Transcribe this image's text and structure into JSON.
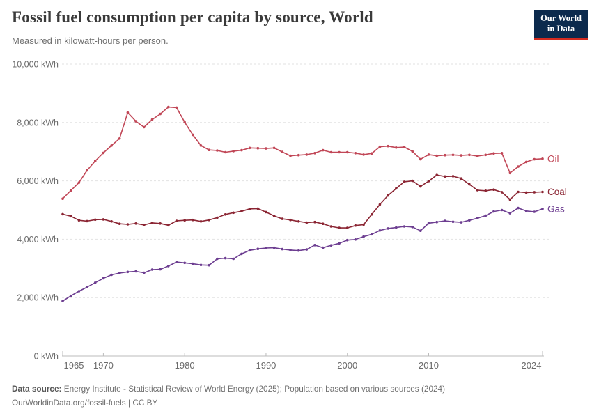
{
  "header": {
    "title": "Fossil fuel consumption per capita by source, World",
    "subtitle": "Measured in kilowatt-hours per person.",
    "logo": {
      "line1": "Our World",
      "line2": "in Data"
    }
  },
  "chart_data": {
    "type": "line",
    "title": "Fossil fuel consumption per capita by source, World",
    "unit": "kWh",
    "xlabel": "",
    "ylabel": "kilowatt-hours per person",
    "ylim": [
      0,
      10000
    ],
    "grid": "horizontal-dashed",
    "legend_position": "right-end-labels",
    "x": [
      1965,
      1966,
      1967,
      1968,
      1969,
      1970,
      1971,
      1972,
      1973,
      1974,
      1975,
      1976,
      1977,
      1978,
      1979,
      1980,
      1981,
      1982,
      1983,
      1984,
      1985,
      1986,
      1987,
      1988,
      1989,
      1990,
      1991,
      1992,
      1993,
      1994,
      1995,
      1996,
      1997,
      1998,
      1999,
      2000,
      2001,
      2002,
      2003,
      2004,
      2005,
      2006,
      2007,
      2008,
      2009,
      2010,
      2011,
      2012,
      2013,
      2014,
      2015,
      2016,
      2017,
      2018,
      2019,
      2020,
      2021,
      2022,
      2023,
      2024
    ],
    "series": [
      {
        "name": "Oil",
        "color": "#c14757",
        "values": [
          5390,
          5670,
          5940,
          6360,
          6680,
          6960,
          7210,
          7450,
          8340,
          8040,
          7840,
          8100,
          8290,
          8530,
          8510,
          8010,
          7580,
          7210,
          7060,
          7040,
          6980,
          7020,
          7050,
          7130,
          7120,
          7110,
          7130,
          6990,
          6860,
          6880,
          6900,
          6950,
          7050,
          6980,
          6980,
          6980,
          6950,
          6900,
          6940,
          7170,
          7190,
          7140,
          7160,
          7010,
          6740,
          6900,
          6860,
          6880,
          6890,
          6870,
          6890,
          6850,
          6890,
          6940,
          6950,
          6270,
          6490,
          6650,
          6740,
          6760
        ]
      },
      {
        "name": "Coal",
        "color": "#8b2533",
        "values": [
          4860,
          4790,
          4650,
          4620,
          4670,
          4680,
          4610,
          4530,
          4510,
          4540,
          4490,
          4560,
          4540,
          4480,
          4630,
          4650,
          4660,
          4610,
          4660,
          4740,
          4850,
          4910,
          4960,
          5040,
          5050,
          4930,
          4800,
          4700,
          4660,
          4610,
          4570,
          4590,
          4530,
          4440,
          4390,
          4390,
          4470,
          4500,
          4850,
          5190,
          5500,
          5740,
          5970,
          6000,
          5810,
          5990,
          6200,
          6150,
          6160,
          6080,
          5880,
          5680,
          5660,
          5700,
          5610,
          5360,
          5620,
          5600,
          5610,
          5620
        ]
      },
      {
        "name": "Gas",
        "color": "#6d3e91",
        "values": [
          1880,
          2060,
          2220,
          2360,
          2510,
          2660,
          2780,
          2840,
          2880,
          2900,
          2850,
          2960,
          2970,
          3080,
          3220,
          3190,
          3160,
          3120,
          3110,
          3330,
          3350,
          3330,
          3500,
          3620,
          3670,
          3700,
          3710,
          3660,
          3630,
          3610,
          3650,
          3800,
          3710,
          3790,
          3860,
          3970,
          3990,
          4090,
          4170,
          4300,
          4370,
          4400,
          4440,
          4420,
          4290,
          4550,
          4590,
          4630,
          4600,
          4580,
          4650,
          4720,
          4810,
          4950,
          5000,
          4890,
          5070,
          4970,
          4940,
          5040
        ]
      }
    ],
    "yticks": [
      0,
      2000,
      4000,
      6000,
      8000,
      10000
    ],
    "ytick_labels": [
      "0 kWh",
      "2,000 kWh",
      "4,000 kWh",
      "6,000 kWh",
      "8,000 kWh",
      "10,000 kWh"
    ],
    "xticks": [
      1965,
      1970,
      1980,
      1990,
      2000,
      2010,
      2024
    ]
  },
  "footer": {
    "source_label": "Data source:",
    "source_text": " Energy Institute - Statistical Review of World Energy (2025); Population based on various sources (2024)",
    "url": "OurWorldinData.org/fossil-fuels",
    "separator": " | ",
    "license": "CC BY"
  }
}
